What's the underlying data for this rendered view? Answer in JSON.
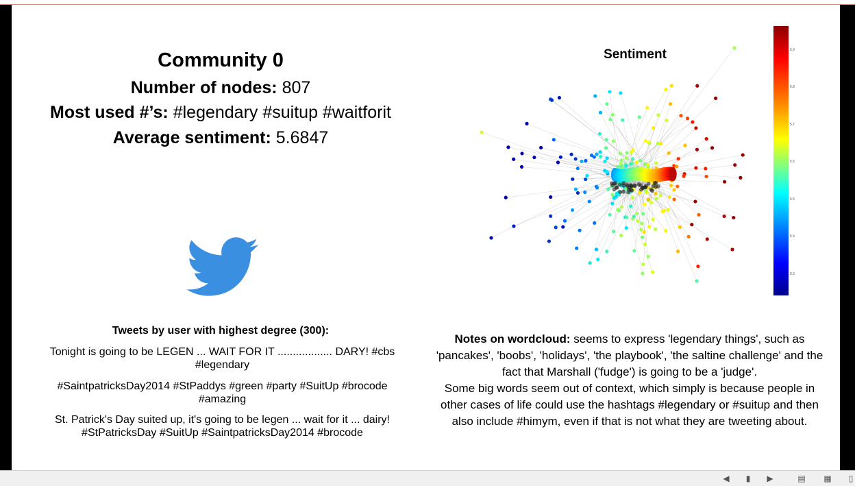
{
  "slide": {
    "title": "Community 0",
    "stats": {
      "nodes_label": "Number of nodes:",
      "nodes_value": "807",
      "hashtags_label": "Most used #’s:",
      "hashtags_value": "#legendary #suitup #waitforit",
      "sentiment_label": "Average sentiment:",
      "sentiment_value": "5.6847"
    },
    "bird_icon": "twitter-bird-icon",
    "tweets_heading": "Tweets by user with highest degree (300):",
    "tweets": [
      "Tonight is going to be LEGEN ... WAIT FOR IT .................. DARY! #cbs #legendary",
      "#SaintpatricksDay2014 #StPaddys #green #party #SuitUp #brocode #amazing",
      "St. Patrick's Day suited up, it's going to be legen ... wait for it ... dairy! #StPatricksDay #SuitUp #SaintpatricksDay2014 #brocode"
    ],
    "notes_label": "Notes on wordcloud:",
    "notes_text_1": " seems to express 'legendary things', such as 'pancakes', 'boobs', 'holidays', 'the playbook', 'the saltine challenge' and the fact that Marshall ('fudge') is going to be a 'judge'.",
    "notes_text_2": "Some big words seem out of context, which simply is because people in other cases of life could use the hashtags #legendary or #suitup and then also include #himym, even if that is not what they are tweeting about.",
    "graph_title": "Sentiment",
    "colorbar_ticks": [
      "5.9",
      "5.8",
      "5.7",
      "5.6",
      "5.5",
      "5.4",
      "5.3"
    ]
  },
  "statusbar": {
    "icons": [
      "previous-slide-icon",
      "pause-icon",
      "next-slide-icon",
      "notes-view-icon",
      "slide-sorter-icon",
      "reading-view-icon"
    ]
  }
}
